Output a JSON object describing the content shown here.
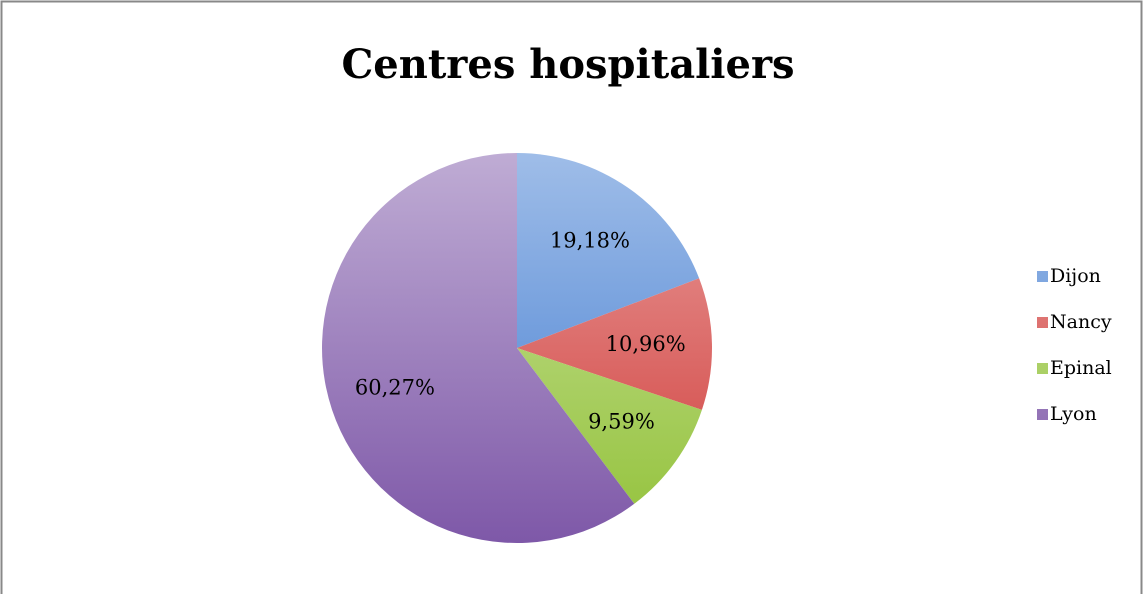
{
  "chart_data": {
    "type": "pie",
    "title": "Centres hospitaliers",
    "categories": [
      "Dijon",
      "Nancy",
      "Epinal",
      "Lyon"
    ],
    "values": [
      19.18,
      10.96,
      9.59,
      60.27
    ],
    "value_labels": [
      "19,18%",
      "10,96%",
      "9,59%",
      "60,27%"
    ],
    "colors": [
      "#3f7ad0",
      "#d03b38",
      "#93c23a",
      "#7e58a8"
    ],
    "legend": "right"
  }
}
